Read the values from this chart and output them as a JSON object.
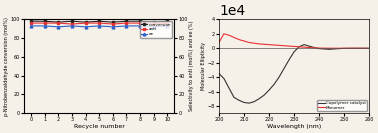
{
  "left": {
    "recycle_numbers": [
      0,
      1,
      2,
      3,
      4,
      5,
      6,
      7,
      8,
      9,
      10
    ],
    "conversion": [
      98,
      98,
      97,
      98,
      97,
      98,
      97,
      98,
      98,
      97,
      98
    ],
    "anti": [
      96,
      96,
      96,
      95,
      96,
      96,
      95,
      96,
      96,
      95,
      96
    ],
    "ee": [
      93,
      93,
      92,
      93,
      92,
      93,
      92,
      93,
      93,
      92,
      93
    ],
    "xlabel": "Recycle number",
    "ylabel_left": "p-Nitrobenzaldehyde conversion (mol%)",
    "ylabel_right": "Selectivity to anti (mol%) and ee (%)",
    "ylim": [
      0,
      100
    ],
    "conversion_color": "#222222",
    "anti_color": "#e83030",
    "ee_color": "#3060c8",
    "legend_labels": [
      "conversion",
      "anti",
      "ee"
    ],
    "title": ""
  },
  "right": {
    "wavelength": [
      200,
      202,
      204,
      206,
      208,
      210,
      212,
      214,
      216,
      218,
      220,
      222,
      224,
      226,
      228,
      230,
      232,
      234,
      236,
      238,
      240,
      242,
      244,
      246,
      248,
      250,
      252,
      254,
      256,
      258,
      260
    ],
    "copolymer": [
      -35000,
      -42000,
      -55000,
      -68000,
      -72000,
      -75000,
      -76000,
      -74000,
      -70000,
      -65000,
      -58000,
      -50000,
      -40000,
      -28000,
      -16000,
      -5000,
      2000,
      5000,
      3000,
      1000,
      -500,
      -1000,
      -1500,
      -1000,
      -500,
      -200,
      -100,
      -50,
      -20,
      -10,
      0
    ],
    "monomer": [
      8000,
      20000,
      18000,
      15000,
      12000,
      10000,
      8000,
      7000,
      6000,
      5500,
      5000,
      4500,
      4000,
      3500,
      3000,
      2500,
      2000,
      1500,
      1000,
      500,
      200,
      100,
      50,
      20,
      10,
      5,
      2,
      1,
      0,
      -100,
      -200
    ],
    "xlabel": "Wavelength (nm)",
    "ylabel": "Molecular Ellipticity",
    "ylim": [
      -90000,
      40000
    ],
    "copolymer_color": "#333333",
    "monomer_color": "#e83030",
    "legend_labels": [
      "Copolymer catalyst",
      "Monomer"
    ],
    "hline_y": 0
  }
}
